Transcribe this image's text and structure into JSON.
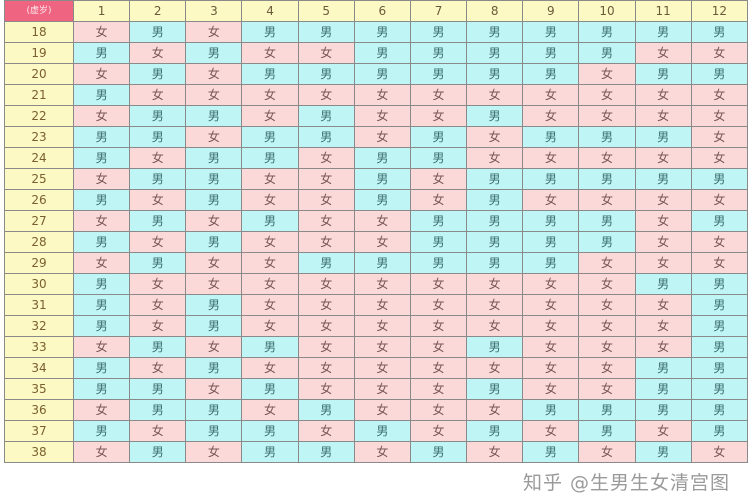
{
  "table": {
    "corner_label": "(虚岁)",
    "months": [
      "1",
      "2",
      "3",
      "4",
      "5",
      "6",
      "7",
      "8",
      "9",
      "10",
      "11",
      "12"
    ],
    "colors": {
      "男": "#bff5f5",
      "女": "#fcd9d9",
      "header": "#fdf9c4",
      "corner": "#ef6581"
    },
    "rows": [
      {
        "age": "18",
        "cells": [
          "女",
          "男",
          "女",
          "男",
          "男",
          "男",
          "男",
          "男",
          "男",
          "男",
          "男",
          "男"
        ]
      },
      {
        "age": "19",
        "cells": [
          "男",
          "女",
          "男",
          "女",
          "女",
          "男",
          "男",
          "男",
          "男",
          "男",
          "女",
          "女"
        ]
      },
      {
        "age": "20",
        "cells": [
          "女",
          "男",
          "女",
          "男",
          "男",
          "男",
          "男",
          "男",
          "男",
          "女",
          "男",
          "男"
        ]
      },
      {
        "age": "21",
        "cells": [
          "男",
          "女",
          "女",
          "女",
          "女",
          "女",
          "女",
          "女",
          "女",
          "女",
          "女",
          "女"
        ]
      },
      {
        "age": "22",
        "cells": [
          "女",
          "男",
          "男",
          "女",
          "男",
          "女",
          "女",
          "男",
          "女",
          "女",
          "女",
          "女"
        ]
      },
      {
        "age": "23",
        "cells": [
          "男",
          "男",
          "女",
          "男",
          "男",
          "女",
          "男",
          "女",
          "男",
          "男",
          "男",
          "女"
        ]
      },
      {
        "age": "24",
        "cells": [
          "男",
          "女",
          "男",
          "男",
          "女",
          "男",
          "男",
          "女",
          "女",
          "女",
          "女",
          "女"
        ]
      },
      {
        "age": "25",
        "cells": [
          "女",
          "男",
          "男",
          "女",
          "女",
          "男",
          "女",
          "男",
          "男",
          "男",
          "男",
          "男"
        ]
      },
      {
        "age": "26",
        "cells": [
          "男",
          "女",
          "男",
          "女",
          "女",
          "男",
          "女",
          "男",
          "女",
          "女",
          "女",
          "女"
        ]
      },
      {
        "age": "27",
        "cells": [
          "女",
          "男",
          "女",
          "男",
          "女",
          "女",
          "男",
          "男",
          "男",
          "男",
          "女",
          "男"
        ]
      },
      {
        "age": "28",
        "cells": [
          "男",
          "女",
          "男",
          "女",
          "女",
          "女",
          "男",
          "男",
          "男",
          "男",
          "女",
          "女"
        ]
      },
      {
        "age": "29",
        "cells": [
          "女",
          "男",
          "女",
          "女",
          "男",
          "男",
          "男",
          "男",
          "男",
          "女",
          "女",
          "女"
        ]
      },
      {
        "age": "30",
        "cells": [
          "男",
          "女",
          "女",
          "女",
          "女",
          "女",
          "女",
          "女",
          "女",
          "女",
          "男",
          "男"
        ]
      },
      {
        "age": "31",
        "cells": [
          "男",
          "女",
          "男",
          "女",
          "女",
          "女",
          "女",
          "女",
          "女",
          "女",
          "女",
          "男"
        ]
      },
      {
        "age": "32",
        "cells": [
          "男",
          "女",
          "男",
          "女",
          "女",
          "女",
          "女",
          "女",
          "女",
          "女",
          "女",
          "男"
        ]
      },
      {
        "age": "33",
        "cells": [
          "女",
          "男",
          "女",
          "男",
          "女",
          "女",
          "女",
          "男",
          "女",
          "女",
          "女",
          "男"
        ]
      },
      {
        "age": "34",
        "cells": [
          "男",
          "女",
          "男",
          "女",
          "女",
          "女",
          "女",
          "女",
          "女",
          "女",
          "男",
          "男"
        ]
      },
      {
        "age": "35",
        "cells": [
          "男",
          "男",
          "女",
          "男",
          "女",
          "女",
          "女",
          "男",
          "女",
          "女",
          "男",
          "男"
        ]
      },
      {
        "age": "36",
        "cells": [
          "女",
          "男",
          "男",
          "女",
          "男",
          "女",
          "女",
          "女",
          "男",
          "男",
          "男",
          "男"
        ]
      },
      {
        "age": "37",
        "cells": [
          "男",
          "女",
          "男",
          "男",
          "女",
          "男",
          "女",
          "男",
          "女",
          "男",
          "女",
          "男"
        ]
      },
      {
        "age": "38",
        "cells": [
          "女",
          "男",
          "女",
          "男",
          "男",
          "女",
          "男",
          "女",
          "男",
          "女",
          "男",
          "女"
        ]
      }
    ]
  },
  "watermark": "知乎 @生男生女清宫图"
}
